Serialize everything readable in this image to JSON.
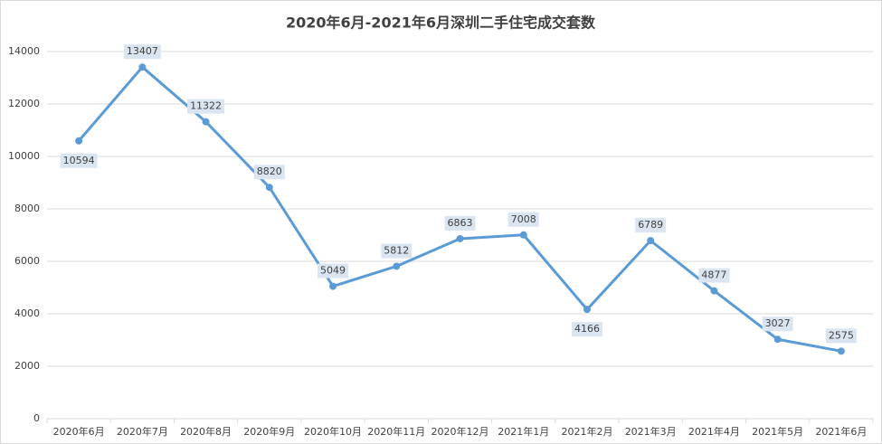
{
  "chart_data": {
    "type": "line",
    "title": "2020年6月-2021年6月深圳二手住宅成交套数",
    "categories": [
      "2020年6月",
      "2020年7月",
      "2020年8月",
      "2020年9月",
      "2020年10月",
      "2020年11月",
      "2020年12月",
      "2021年1月",
      "2021年2月",
      "2021年3月",
      "2021年4月",
      "2021年5月",
      "2021年6月"
    ],
    "values": [
      10594,
      13407,
      11322,
      8820,
      5049,
      5812,
      6863,
      7008,
      4166,
      6789,
      4877,
      3027,
      2575
    ],
    "color": "#5b9bd5",
    "ylim": [
      0,
      14000
    ],
    "yticks": [
      0,
      2000,
      4000,
      6000,
      8000,
      10000,
      12000,
      14000
    ],
    "grid": true
  }
}
